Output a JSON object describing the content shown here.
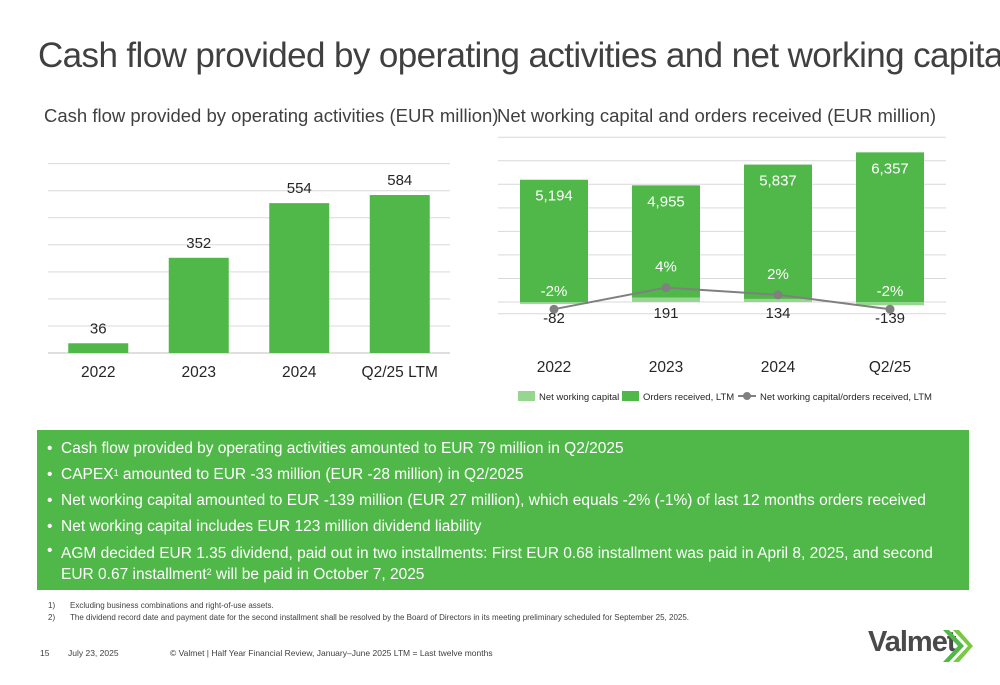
{
  "page": {
    "title": "Cash flow provided by operating activities and net working capital",
    "page_number": "15",
    "date": "July 23, 2025",
    "footer_text": "© Valmet   | Half Year Financial Review, January–June 2025    LTM = Last twelve months",
    "logo_text": "Valmet"
  },
  "colors": {
    "green": "#50b848",
    "light_green": "#95d78e",
    "grid": "#d9d9d9",
    "line": "#808080"
  },
  "chart_data": [
    {
      "type": "bar",
      "title": "Cash flow provided by operating activities (EUR million)",
      "categories": [
        "2022",
        "2023",
        "2024",
        "Q2/25 LTM"
      ],
      "values": [
        36,
        352,
        554,
        584
      ],
      "labels": [
        "36",
        "352",
        "554",
        "584"
      ],
      "ylim": [
        0,
        700
      ],
      "gridlines": true
    },
    {
      "type": "bar+line",
      "title": "Net working capital and orders received (EUR million)",
      "categories": [
        "2022",
        "2023",
        "2024",
        "Q2/25"
      ],
      "series": [
        {
          "name": "Net working capital",
          "values": [
            -82,
            191,
            134,
            -139
          ],
          "labels": [
            "-82",
            "191",
            "134",
            "-139"
          ]
        },
        {
          "name": "Orders received, LTM",
          "values": [
            5194,
            4955,
            5837,
            6357
          ],
          "labels": [
            "5,194",
            "4,955",
            "5,837",
            "6,357"
          ]
        },
        {
          "name": "Net working capital/orders received, LTM",
          "values": [
            -2,
            4,
            2,
            -2
          ],
          "labels": [
            "-2%",
            "4%",
            "2%",
            "-2%"
          ]
        }
      ],
      "ylim": [
        -500,
        7000
      ],
      "ratio_ylim": [
        -2,
        12
      ],
      "legend": [
        "Net working capital",
        "Orders received, LTM",
        "Net working capital/orders received, LTM"
      ],
      "gridlines": true
    }
  ],
  "bullets": [
    "Cash flow provided by operating activities amounted to EUR 79 million in Q2/2025",
    {
      "pre": "CAPEX",
      "sup": "1",
      "post": " amounted to EUR -33 million (EUR -28 million) in Q2/2025"
    },
    "Net working capital amounted to EUR -139 million (EUR 27 million), which equals -2% (-1%) of last 12 months orders received",
    "Net working capital includes EUR 123 million dividend liability",
    {
      "pre": "AGM decided EUR 1.35 dividend, paid out in two installments: First EUR 0.68 installment was paid in April 8, 2025, and second EUR 0.67 installment",
      "sup": "2",
      "post": " will be paid in October 7, 2025"
    }
  ],
  "footnotes": [
    {
      "num": "1)",
      "text": "Excluding business combinations and right-of-use assets."
    },
    {
      "num": "2)",
      "text": "The dividend record date and payment date for the second installment shall be resolved by the Board of Directors in its meeting preliminary scheduled for September 25, 2025."
    }
  ]
}
